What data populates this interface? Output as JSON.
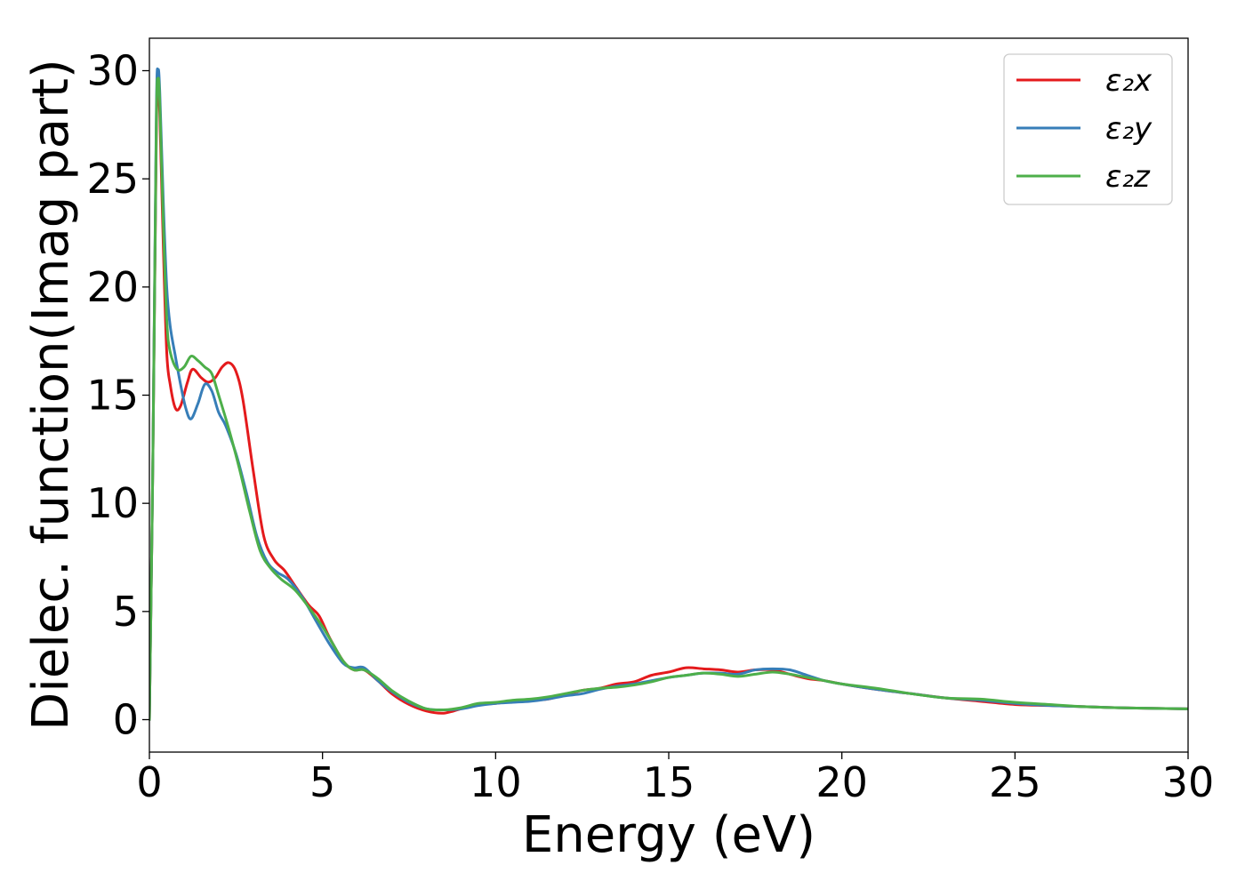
{
  "chart_data": {
    "type": "line",
    "title": "",
    "xlabel": "Energy (eV)",
    "ylabel": "Dielec. function(Imag part)",
    "xlim": [
      0,
      30
    ],
    "ylim": [
      -1.5,
      31.5
    ],
    "xticks": [
      0,
      5,
      10,
      15,
      20,
      25,
      30
    ],
    "yticks": [
      0,
      5,
      10,
      15,
      20,
      25,
      30
    ],
    "grid": false,
    "legend_position": "top-right",
    "series": [
      {
        "name": "ε₂x",
        "color": "#e41a1c",
        "points": [
          [
            0,
            0
          ],
          [
            0.1,
            12
          ],
          [
            0.2,
            27
          ],
          [
            0.25,
            29.2
          ],
          [
            0.3,
            28
          ],
          [
            0.4,
            22
          ],
          [
            0.5,
            17
          ],
          [
            0.6,
            15.5
          ],
          [
            0.75,
            14.4
          ],
          [
            0.9,
            14.5
          ],
          [
            1.1,
            15.6
          ],
          [
            1.25,
            16.2
          ],
          [
            1.5,
            15.8
          ],
          [
            1.7,
            15.6
          ],
          [
            1.9,
            15.8
          ],
          [
            2.1,
            16.3
          ],
          [
            2.3,
            16.5
          ],
          [
            2.5,
            16.1
          ],
          [
            2.7,
            14.8
          ],
          [
            3.0,
            11.5
          ],
          [
            3.3,
            8.5
          ],
          [
            3.6,
            7.4
          ],
          [
            3.9,
            6.9
          ],
          [
            4.2,
            6.2
          ],
          [
            4.6,
            5.3
          ],
          [
            4.9,
            4.8
          ],
          [
            5.2,
            3.8
          ],
          [
            5.6,
            2.7
          ],
          [
            5.9,
            2.3
          ],
          [
            6.2,
            2.3
          ],
          [
            6.6,
            1.8
          ],
          [
            7.0,
            1.2
          ],
          [
            7.5,
            0.7
          ],
          [
            8.0,
            0.4
          ],
          [
            8.5,
            0.3
          ],
          [
            9.0,
            0.5
          ],
          [
            9.5,
            0.7
          ],
          [
            10.0,
            0.75
          ],
          [
            10.5,
            0.85
          ],
          [
            11.0,
            0.9
          ],
          [
            11.5,
            0.95
          ],
          [
            12.0,
            1.15
          ],
          [
            12.5,
            1.35
          ],
          [
            13.0,
            1.45
          ],
          [
            13.5,
            1.65
          ],
          [
            14.0,
            1.75
          ],
          [
            14.5,
            2.05
          ],
          [
            15.0,
            2.2
          ],
          [
            15.5,
            2.4
          ],
          [
            16.0,
            2.35
          ],
          [
            16.5,
            2.3
          ],
          [
            17.0,
            2.2
          ],
          [
            17.5,
            2.3
          ],
          [
            18.0,
            2.3
          ],
          [
            18.5,
            2.1
          ],
          [
            19.0,
            1.9
          ],
          [
            19.5,
            1.8
          ],
          [
            20.0,
            1.65
          ],
          [
            21.0,
            1.4
          ],
          [
            22.0,
            1.2
          ],
          [
            23.0,
            1.0
          ],
          [
            24.0,
            0.85
          ],
          [
            25.0,
            0.7
          ],
          [
            26.0,
            0.65
          ],
          [
            27.0,
            0.6
          ],
          [
            28.0,
            0.55
          ],
          [
            30.0,
            0.5
          ]
        ]
      },
      {
        "name": "ε₂y",
        "color": "#377eb8",
        "points": [
          [
            0,
            0
          ],
          [
            0.1,
            12
          ],
          [
            0.2,
            28
          ],
          [
            0.25,
            30
          ],
          [
            0.3,
            29
          ],
          [
            0.4,
            24
          ],
          [
            0.5,
            20
          ],
          [
            0.6,
            18.2
          ],
          [
            0.75,
            16.8
          ],
          [
            0.9,
            15.5
          ],
          [
            1.05,
            14.4
          ],
          [
            1.2,
            13.9
          ],
          [
            1.4,
            14.6
          ],
          [
            1.6,
            15.5
          ],
          [
            1.8,
            15.2
          ],
          [
            2.0,
            14.2
          ],
          [
            2.2,
            13.6
          ],
          [
            2.5,
            12.3
          ],
          [
            2.8,
            10.5
          ],
          [
            3.1,
            8.5
          ],
          [
            3.4,
            7.3
          ],
          [
            3.7,
            6.8
          ],
          [
            4.0,
            6.5
          ],
          [
            4.4,
            5.7
          ],
          [
            4.8,
            4.6
          ],
          [
            5.2,
            3.5
          ],
          [
            5.6,
            2.6
          ],
          [
            5.9,
            2.4
          ],
          [
            6.2,
            2.4
          ],
          [
            6.6,
            1.8
          ],
          [
            7.0,
            1.3
          ],
          [
            7.5,
            0.8
          ],
          [
            8.0,
            0.5
          ],
          [
            8.5,
            0.45
          ],
          [
            9.0,
            0.5
          ],
          [
            9.5,
            0.65
          ],
          [
            10.0,
            0.75
          ],
          [
            10.5,
            0.8
          ],
          [
            11.0,
            0.85
          ],
          [
            11.5,
            0.95
          ],
          [
            12.0,
            1.1
          ],
          [
            12.5,
            1.2
          ],
          [
            13.0,
            1.4
          ],
          [
            13.5,
            1.55
          ],
          [
            14.0,
            1.65
          ],
          [
            14.5,
            1.8
          ],
          [
            15.0,
            1.95
          ],
          [
            15.5,
            2.05
          ],
          [
            16.0,
            2.15
          ],
          [
            16.5,
            2.15
          ],
          [
            17.0,
            2.1
          ],
          [
            17.5,
            2.3
          ],
          [
            18.0,
            2.35
          ],
          [
            18.5,
            2.3
          ],
          [
            19.0,
            2.05
          ],
          [
            19.5,
            1.8
          ],
          [
            20.0,
            1.65
          ],
          [
            21.0,
            1.4
          ],
          [
            22.0,
            1.2
          ],
          [
            23.0,
            1.0
          ],
          [
            24.0,
            0.9
          ],
          [
            25.0,
            0.75
          ],
          [
            26.0,
            0.65
          ],
          [
            27.0,
            0.6
          ],
          [
            28.0,
            0.55
          ],
          [
            30.0,
            0.5
          ]
        ]
      },
      {
        "name": "ε₂z",
        "color": "#4daf4a",
        "points": [
          [
            0,
            0
          ],
          [
            0.1,
            12
          ],
          [
            0.2,
            27.5
          ],
          [
            0.25,
            29.6
          ],
          [
            0.3,
            28.5
          ],
          [
            0.4,
            23
          ],
          [
            0.5,
            18.5
          ],
          [
            0.6,
            17
          ],
          [
            0.8,
            16.2
          ],
          [
            1.0,
            16.3
          ],
          [
            1.2,
            16.8
          ],
          [
            1.4,
            16.6
          ],
          [
            1.6,
            16.3
          ],
          [
            1.8,
            16.0
          ],
          [
            2.0,
            15.0
          ],
          [
            2.3,
            13.4
          ],
          [
            2.6,
            11.6
          ],
          [
            2.9,
            9.6
          ],
          [
            3.2,
            7.8
          ],
          [
            3.5,
            7.0
          ],
          [
            3.8,
            6.5
          ],
          [
            4.2,
            6.0
          ],
          [
            4.6,
            5.2
          ],
          [
            5.0,
            4.3
          ],
          [
            5.3,
            3.5
          ],
          [
            5.6,
            2.7
          ],
          [
            5.9,
            2.3
          ],
          [
            6.2,
            2.3
          ],
          [
            6.6,
            1.9
          ],
          [
            7.0,
            1.35
          ],
          [
            7.5,
            0.85
          ],
          [
            8.0,
            0.5
          ],
          [
            8.5,
            0.45
          ],
          [
            9.0,
            0.55
          ],
          [
            9.5,
            0.75
          ],
          [
            10.0,
            0.8
          ],
          [
            10.5,
            0.9
          ],
          [
            11.0,
            0.95
          ],
          [
            11.5,
            1.05
          ],
          [
            12.0,
            1.2
          ],
          [
            12.5,
            1.35
          ],
          [
            13.0,
            1.45
          ],
          [
            13.5,
            1.5
          ],
          [
            14.0,
            1.6
          ],
          [
            14.5,
            1.75
          ],
          [
            15.0,
            1.95
          ],
          [
            15.5,
            2.05
          ],
          [
            16.0,
            2.15
          ],
          [
            16.5,
            2.1
          ],
          [
            17.0,
            2.0
          ],
          [
            17.5,
            2.1
          ],
          [
            18.0,
            2.2
          ],
          [
            18.5,
            2.1
          ],
          [
            19.0,
            1.95
          ],
          [
            19.5,
            1.8
          ],
          [
            20.0,
            1.65
          ],
          [
            21.0,
            1.45
          ],
          [
            22.0,
            1.2
          ],
          [
            23.0,
            1.0
          ],
          [
            24.0,
            0.95
          ],
          [
            25.0,
            0.8
          ],
          [
            26.0,
            0.7
          ],
          [
            27.0,
            0.6
          ],
          [
            28.0,
            0.55
          ],
          [
            30.0,
            0.5
          ]
        ]
      }
    ]
  }
}
